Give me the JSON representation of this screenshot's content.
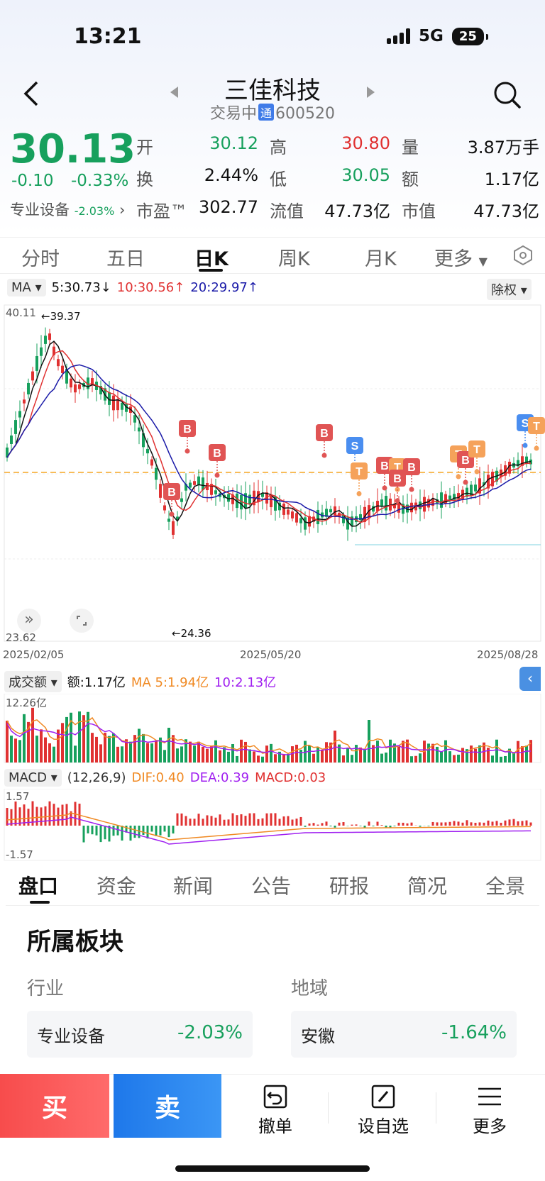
{
  "status": {
    "time": "13:21",
    "network": "5G",
    "battery": "25"
  },
  "header": {
    "title": "三佳科技",
    "status": "交易中",
    "tong": "通",
    "code": "600520"
  },
  "quote": {
    "price": "30.13",
    "change": "-0.10",
    "change_pct": "-0.33%",
    "sector": "专业设备",
    "sector_pct": "-2.03%",
    "open_label": "开",
    "open": "30.12",
    "high_label": "高",
    "high": "30.80",
    "vol_label": "量",
    "vol": "3.87万手",
    "turn_label": "换",
    "turn": "2.44%",
    "low_label": "低",
    "low": "30.05",
    "amt_label": "额",
    "amt": "1.17亿",
    "pe_label": "市盈™",
    "pe": "302.77",
    "float_label": "流值",
    "float": "47.73亿",
    "mcap_label": "市值",
    "mcap": "47.73亿"
  },
  "tabs": [
    "分时",
    "五日",
    "日K",
    "周K",
    "月K",
    "更多"
  ],
  "ma_bar": {
    "ma_label": "MA",
    "ma5": "5:30.73",
    "ma10": "10:30.56",
    "ma20": "20:29.97",
    "fq": "除权"
  },
  "kline": {
    "top_left": "40.11",
    "bottom_left": "23.62",
    "high_mark": "39.37",
    "low_mark": "24.36",
    "dates": [
      "2025/02/05",
      "2025/05/20",
      "2025/08/28"
    ],
    "colors": {
      "up": "#e03131",
      "down": "#17a05d",
      "ma5": "#111111",
      "ma10": "#e03131",
      "ma20": "#1a1aa8",
      "dash": "#f5a623"
    }
  },
  "volume": {
    "label": "成交额",
    "amt": "额:1.17亿",
    "ma5": "MA 5:1.94亿",
    "ma10": "10:2.13亿",
    "top": "12.26亿"
  },
  "macd": {
    "label": "MACD",
    "params": "(12,26,9)",
    "dif": "DIF:0.40",
    "dea": "DEA:0.39",
    "macd": "MACD:0.03",
    "top": "1.57",
    "bottom": "-1.57"
  },
  "bottom_tabs": [
    "盘口",
    "资金",
    "新闻",
    "公告",
    "研报",
    "简况",
    "全景"
  ],
  "section": {
    "title": "所属板块",
    "industry_label": "行业",
    "region_label": "地域",
    "industry_name": "专业设备",
    "industry_pct": "-2.03%",
    "region_name": "安徽",
    "region_pct": "-1.64%"
  },
  "actions": {
    "buy": "买",
    "sell": "卖",
    "cancel": "撤单",
    "watch": "设自选",
    "more": "更多"
  }
}
